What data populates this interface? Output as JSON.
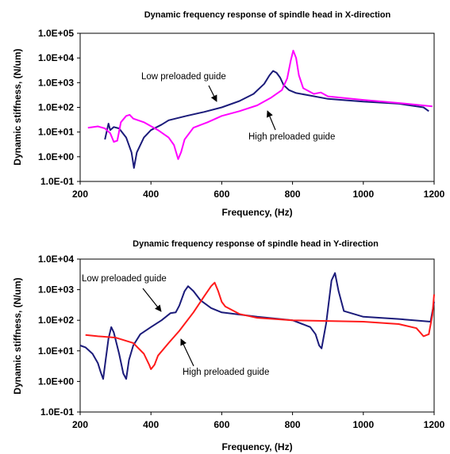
{
  "chart_data": [
    {
      "type": "line",
      "title": "Dynamic frequency response of spindle head in X-direction",
      "xlabel": "Frequency, (Hz)",
      "ylabel": "Dynamic stiffness, (N/um)",
      "y_scale": "log",
      "xlim": [
        200,
        1200
      ],
      "ylim_exp": [
        -1,
        5
      ],
      "x_ticks": [
        "200",
        "400",
        "600",
        "800",
        "1000",
        "1200"
      ],
      "y_ticks": [
        "1.0E-01",
        "1.0E+00",
        "1.0E+01",
        "1.0E+02",
        "1.0E+03",
        "1.0E+04",
        "1.0E+05"
      ],
      "grid": false,
      "series": [
        {
          "label": "Low preloaded guide",
          "color": "#1b1b7a",
          "x": [
            270,
            280,
            285,
            295,
            310,
            330,
            345,
            352,
            360,
            380,
            400,
            430,
            450,
            500,
            550,
            600,
            650,
            690,
            720,
            735,
            745,
            755,
            765,
            775,
            790,
            810,
            850,
            900,
            1000,
            1100,
            1170,
            1185
          ],
          "y": [
            5,
            22,
            12,
            16,
            14,
            6,
            1.5,
            0.35,
            1.5,
            6,
            12,
            20,
            30,
            45,
            65,
            100,
            180,
            350,
            900,
            2000,
            3000,
            2500,
            1600,
            800,
            500,
            380,
            300,
            220,
            170,
            140,
            100,
            70
          ]
        },
        {
          "label": "High preloaded guide",
          "color": "#ff00ff",
          "x": [
            222,
            250,
            270,
            285,
            295,
            305,
            315,
            330,
            340,
            350,
            380,
            420,
            450,
            465,
            477,
            485,
            495,
            520,
            560,
            600,
            650,
            700,
            740,
            770,
            785,
            795,
            802,
            810,
            818,
            830,
            860,
            880,
            900,
            1000,
            1100,
            1195
          ],
          "y": [
            15,
            17,
            14,
            9,
            4,
            4.5,
            25,
            45,
            50,
            35,
            25,
            12,
            6,
            3,
            0.8,
            1.5,
            5,
            15,
            25,
            45,
            70,
            120,
            250,
            500,
            1500,
            8000,
            20000,
            10000,
            2000,
            600,
            350,
            400,
            280,
            200,
            150,
            110
          ]
        }
      ],
      "annotations": [
        "Low preloaded guide",
        "High preloaded guide"
      ]
    },
    {
      "type": "line",
      "title": "Dynamic frequency response of spindle head in Y-direction",
      "xlabel": "Frequency, (Hz)",
      "ylabel": "Dynamic stiffness, (N/um)",
      "y_scale": "log",
      "xlim": [
        200,
        1200
      ],
      "ylim_exp": [
        -1,
        4
      ],
      "x_ticks": [
        "200",
        "400",
        "600",
        "800",
        "1000",
        "1200"
      ],
      "y_ticks": [
        "1.0E-01",
        "1.0E+00",
        "1.0E+01",
        "1.0E+02",
        "1.0E+03",
        "1.0E+04"
      ],
      "grid": false,
      "series": [
        {
          "label": "Low preloaded guide",
          "color": "#1b1b7a",
          "x": [
            200,
            215,
            235,
            250,
            258,
            265,
            272,
            280,
            288,
            295,
            310,
            322,
            330,
            338,
            350,
            370,
            400,
            430,
            455,
            470,
            480,
            495,
            505,
            520,
            540,
            570,
            600,
            700,
            800,
            850,
            865,
            875,
            882,
            895,
            910,
            920,
            930,
            945,
            1000,
            1100,
            1190,
            1200
          ],
          "y": [
            15,
            13,
            8,
            4,
            2,
            1.2,
            5,
            25,
            60,
            40,
            8,
            1.8,
            1.2,
            5,
            15,
            35,
            60,
            100,
            170,
            180,
            300,
            900,
            1300,
            900,
            450,
            250,
            180,
            130,
            100,
            60,
            35,
            15,
            12,
            80,
            2000,
            3500,
            900,
            200,
            130,
            110,
            90,
            400
          ]
        },
        {
          "label": "High preloaded guide",
          "color": "#ff1a1a",
          "x": [
            215,
            250,
            300,
            350,
            380,
            395,
            400,
            410,
            420,
            450,
            480,
            520,
            550,
            570,
            580,
            590,
            600,
            610,
            650,
            700,
            800,
            900,
            1000,
            1100,
            1150,
            1170,
            1185,
            1195,
            1200
          ],
          "y": [
            33,
            30,
            27,
            18,
            8,
            3.5,
            2.5,
            3.5,
            7,
            18,
            45,
            180,
            600,
            1300,
            1700,
            900,
            400,
            280,
            160,
            120,
            100,
            95,
            90,
            75,
            55,
            30,
            35,
            150,
            700
          ]
        }
      ],
      "annotations": [
        "Low preloaded guide",
        "High preloaded guide"
      ]
    }
  ]
}
